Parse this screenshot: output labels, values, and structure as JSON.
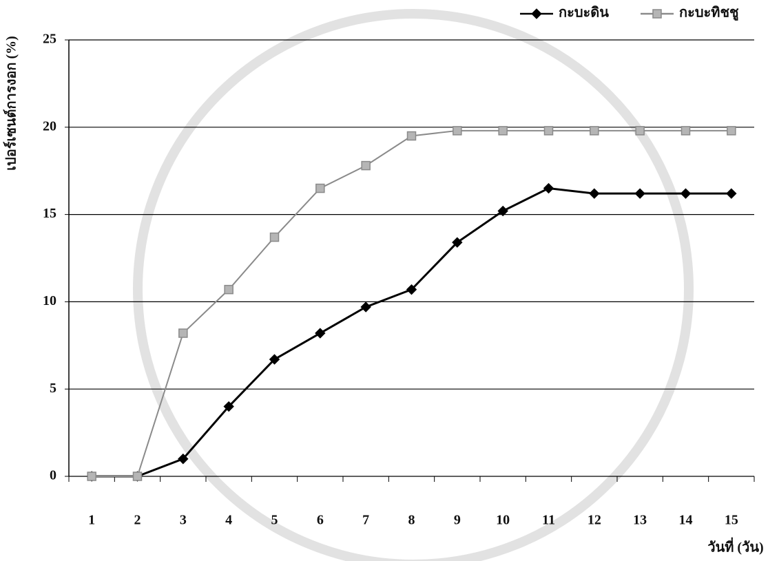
{
  "chart_data": {
    "type": "line",
    "x_label": "วันที่ (วัน)",
    "y_label": "เปอร์เซนต์การงอก (%)",
    "categories": [
      "1",
      "2",
      "3",
      "4",
      "5",
      "6",
      "7",
      "8",
      "9",
      "10",
      "11",
      "12",
      "13",
      "14",
      "15"
    ],
    "series": [
      {
        "name": "กะบะดิน",
        "color": "#000000",
        "marker": "diamond",
        "values": [
          0,
          0,
          1,
          4,
          6.7,
          8.2,
          9.7,
          10.7,
          13.4,
          15.2,
          16.5,
          16.2,
          16.2,
          16.2,
          16.2
        ]
      },
      {
        "name": "กะบะทิชชู",
        "color": "#8a8a8a",
        "marker": "square",
        "values": [
          0,
          0,
          8.2,
          10.7,
          13.7,
          16.5,
          17.8,
          19.5,
          19.8,
          19.8,
          19.8,
          19.8,
          19.8,
          19.8,
          19.8
        ]
      }
    ],
    "ylim": [
      0,
      25
    ],
    "yticks": [
      0,
      5,
      10,
      15,
      20,
      25
    ],
    "grid": true,
    "legend": "top-right"
  }
}
